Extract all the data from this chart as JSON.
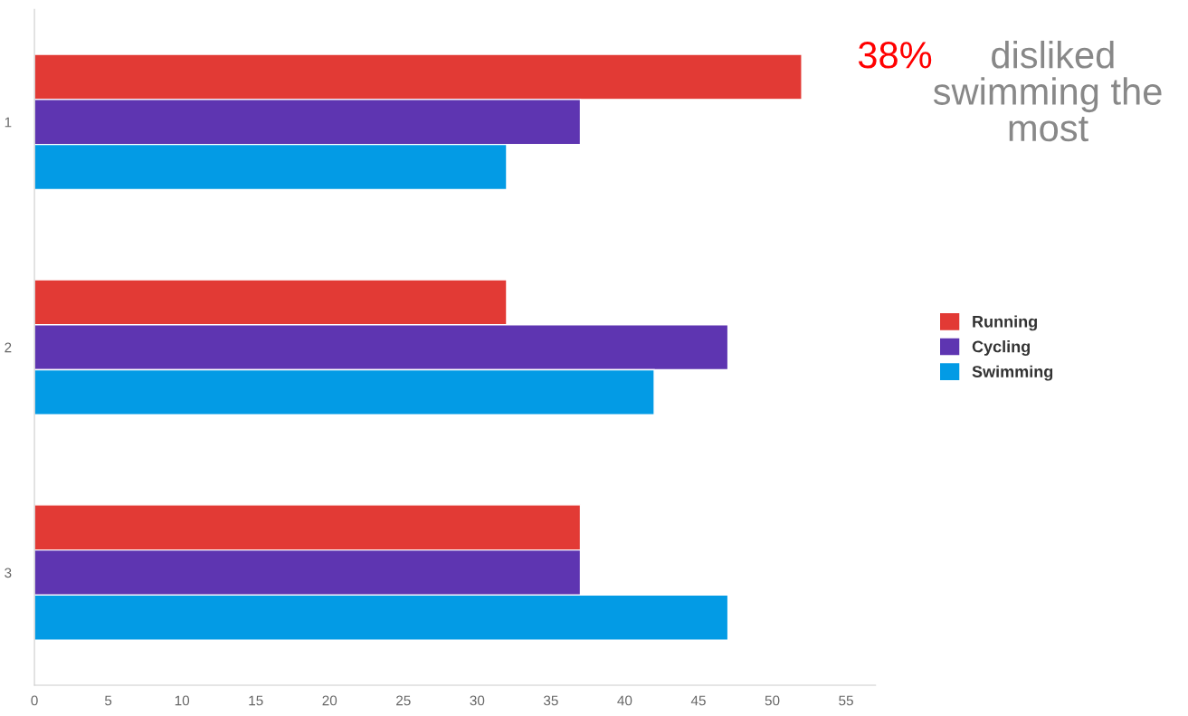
{
  "chart_data": {
    "type": "bar",
    "orientation": "horizontal",
    "categories": [
      "1",
      "2",
      "3"
    ],
    "series": [
      {
        "name": "Running",
        "color": "#e23a35",
        "values": [
          52,
          32,
          37
        ]
      },
      {
        "name": "Cycling",
        "color": "#5e35b1",
        "values": [
          37,
          47,
          37
        ]
      },
      {
        "name": "Swimming",
        "color": "#039be5",
        "values": [
          32,
          42,
          47
        ]
      }
    ],
    "xlim": [
      0,
      57
    ],
    "xticks": [
      0,
      5,
      10,
      15,
      20,
      25,
      30,
      35,
      40,
      45,
      50,
      55
    ],
    "grid": false,
    "legend": "right",
    "annotations": [
      "38%",
      "disliked\nswimming the\nmost"
    ]
  }
}
